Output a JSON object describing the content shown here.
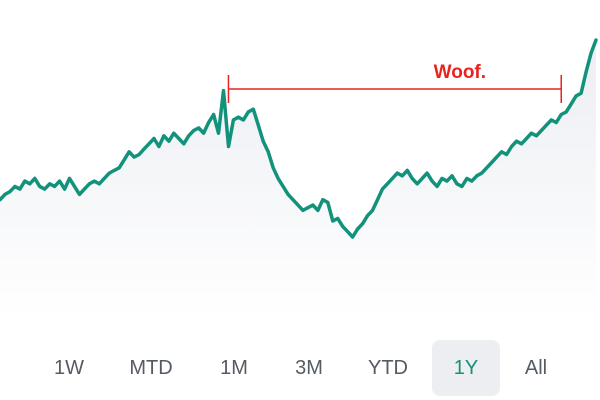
{
  "colors": {
    "line": "#12927a",
    "annotation": "#e8231d",
    "fill_top": "#eceef3",
    "fill_bottom": "#ffffff",
    "active_bg": "#eceef2",
    "active_text": "#12927a",
    "text": "#555b63"
  },
  "chart_data": {
    "type": "area",
    "title": "",
    "xlabel": "",
    "ylabel": "",
    "grid": false,
    "legend": "none",
    "x": [
      0,
      1,
      2,
      3,
      4,
      5,
      6,
      7,
      8,
      9,
      10,
      11,
      12,
      13,
      14,
      15,
      16,
      17,
      18,
      19,
      20,
      21,
      22,
      23,
      24,
      25,
      26,
      27,
      28,
      29,
      30,
      31,
      32,
      33,
      34,
      35,
      36,
      37,
      38,
      39,
      40,
      41,
      42,
      43,
      44,
      45,
      46,
      47,
      48,
      49,
      50,
      51,
      52,
      53,
      54,
      55,
      56,
      57,
      58,
      59,
      60,
      61,
      62,
      63,
      64,
      65,
      66,
      67,
      68,
      69,
      70,
      71,
      72,
      73,
      74,
      75,
      76,
      77,
      78,
      79,
      80,
      81,
      82,
      83,
      84,
      85,
      86,
      87,
      88,
      89,
      90,
      91,
      92,
      93,
      94,
      95,
      96,
      97,
      98,
      99,
      100,
      101,
      102,
      103,
      104,
      105,
      106,
      107,
      108,
      109,
      110,
      111,
      112,
      113,
      114,
      115,
      116,
      117,
      118,
      119,
      120
    ],
    "series": [
      {
        "values": [
          40,
          42,
          43,
          45,
          44,
          47,
          46,
          48,
          45,
          44,
          46,
          45,
          47,
          44,
          48,
          45,
          42,
          44,
          46,
          47,
          46,
          48,
          50,
          51,
          52,
          55,
          58,
          56,
          57,
          59,
          61,
          63,
          60,
          64,
          62,
          65,
          63,
          61,
          64,
          66,
          67,
          65,
          69,
          72,
          65,
          81,
          60,
          70,
          71,
          70,
          73,
          74,
          68,
          62,
          58,
          52,
          48,
          45,
          42,
          40,
          38,
          36,
          37,
          38,
          36,
          40,
          39,
          32,
          33,
          30,
          28,
          26,
          29,
          31,
          34,
          36,
          40,
          44,
          46,
          48,
          50,
          49,
          51,
          48,
          46,
          48,
          50,
          47,
          45,
          48,
          47,
          49,
          46,
          45,
          48,
          47,
          49,
          50,
          52,
          54,
          56,
          58,
          57,
          60,
          62,
          61,
          63,
          65,
          64,
          66,
          68,
          70,
          69,
          72,
          73,
          76,
          79,
          80,
          88,
          95,
          100
        ]
      }
    ],
    "ylim": [
      0,
      110
    ],
    "annotations": [
      {
        "text": "Woof.",
        "from_x": 46,
        "to_x": 113
      }
    ]
  },
  "range_selector": {
    "buttons": [
      {
        "label": "1W",
        "active": false
      },
      {
        "label": "MTD",
        "active": false
      },
      {
        "label": "1M",
        "active": false
      },
      {
        "label": "3M",
        "active": false
      },
      {
        "label": "YTD",
        "active": false
      },
      {
        "label": "1Y",
        "active": true
      },
      {
        "label": "All",
        "active": false
      }
    ]
  }
}
